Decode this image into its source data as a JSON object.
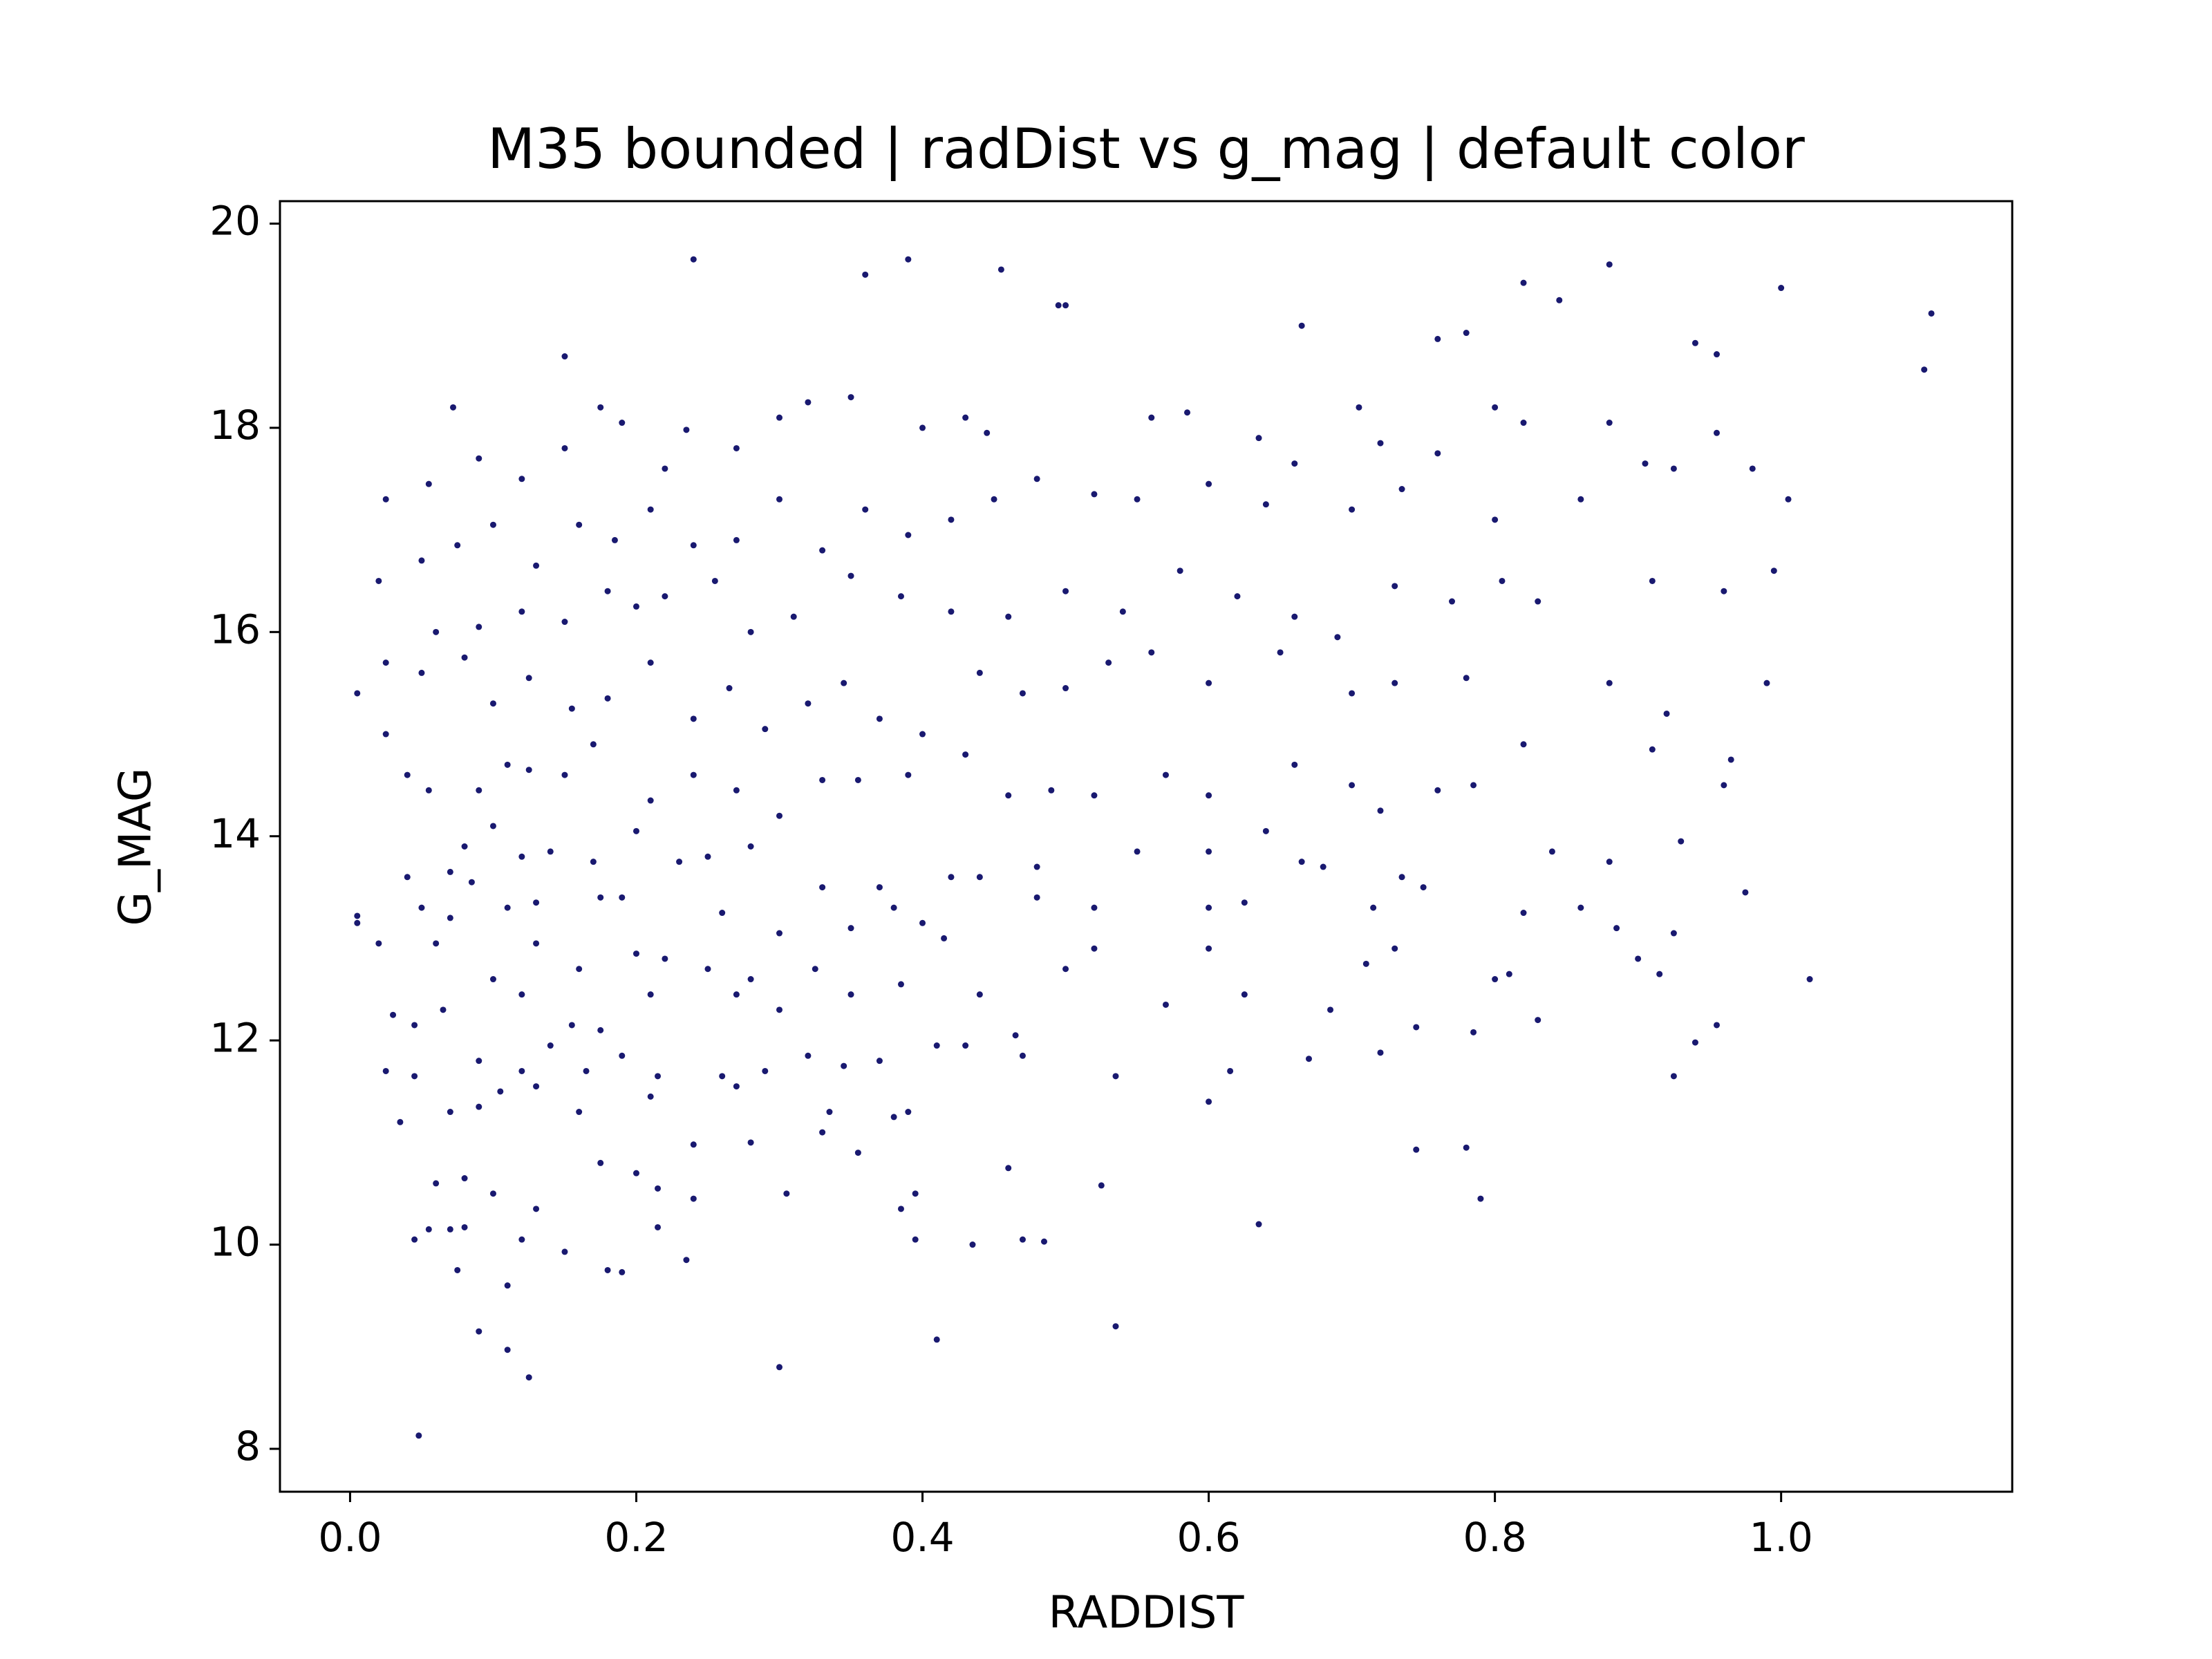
{
  "chart_data": {
    "type": "scatter",
    "title": "M35 bounded | radDist vs g_mag | default color",
    "x_label": "RADDIST",
    "y_label": "G_MAG",
    "color": "#191970",
    "xlim": [
      -0.049,
      1.1615
    ],
    "ylim": [
      7.58,
      20.22
    ],
    "xticks": [
      {
        "value": 0,
        "label": "0.0"
      },
      {
        "value": 0.2,
        "label": "0.2"
      },
      {
        "value": 0.4,
        "label": "0.4"
      },
      {
        "value": 0.6,
        "label": "0.6"
      },
      {
        "value": 0.8,
        "label": "0.8"
      },
      {
        "value": 1,
        "label": "1.0"
      }
    ],
    "yticks": [
      8,
      10,
      12,
      14,
      16,
      18,
      20
    ],
    "x": [
      0.24,
      0.36,
      0.39,
      0.455,
      0.495,
      0.5,
      0.665,
      0.76,
      0.78,
      0.82,
      0.845,
      0.88,
      0.94,
      0.955,
      1.0,
      1.1,
      1.105,
      0.15,
      0.048,
      0.125,
      0.3,
      0.41,
      0.535,
      0.09,
      0.11,
      0.11,
      0.075,
      0.18,
      0.19,
      0.235,
      0.15,
      0.045,
      0.055,
      0.07,
      0.08,
      0.12,
      0.215,
      0.395,
      0.435,
      0.47,
      0.485,
      0.635,
      0.79,
      0.525,
      0.46,
      0.78,
      0.745,
      0.06,
      0.08,
      0.1,
      0.13,
      0.175,
      0.2,
      0.215,
      0.24,
      0.305,
      0.385,
      0.395,
      0.035,
      0.07,
      0.09,
      0.105,
      0.13,
      0.16,
      0.21,
      0.24,
      0.27,
      0.28,
      0.33,
      0.335,
      0.355,
      0.38,
      0.39,
      0.025,
      0.045,
      0.09,
      0.12,
      0.14,
      0.165,
      0.19,
      0.215,
      0.26,
      0.29,
      0.32,
      0.345,
      0.37,
      0.41,
      0.43,
      0.47,
      0.535,
      0.6,
      0.615,
      0.67,
      0.72,
      0.745,
      0.785,
      0.925,
      0.94,
      0.955,
      0.03,
      0.045,
      0.065,
      0.1,
      0.12,
      0.155,
      0.175,
      0.21,
      0.25,
      0.27,
      0.3,
      0.325,
      0.35,
      0.385,
      0.44,
      0.465,
      0.5,
      0.52,
      0.57,
      0.6,
      0.625,
      0.685,
      0.71,
      0.73,
      0.8,
      0.81,
      0.83,
      0.9,
      0.915,
      1.02,
      0.06,
      0.13,
      0.16,
      0.2,
      0.28,
      0.22,
      0.02,
      0.005,
      0.005,
      0.05,
      0.07,
      0.085,
      0.11,
      0.13,
      0.175,
      0.19,
      0.26,
      0.3,
      0.35,
      0.38,
      0.4,
      0.415,
      0.48,
      0.52,
      0.6,
      0.625,
      0.715,
      0.75,
      0.82,
      0.86,
      0.885,
      0.925,
      0.975,
      0.04,
      0.07,
      0.08,
      0.1,
      0.12,
      0.14,
      0.17,
      0.2,
      0.23,
      0.25,
      0.28,
      0.33,
      0.37,
      0.42,
      0.44,
      0.48,
      0.55,
      0.6,
      0.64,
      0.665,
      0.68,
      0.735,
      0.84,
      0.88,
      0.93,
      0.04,
      0.055,
      0.09,
      0.11,
      0.125,
      0.15,
      0.17,
      0.21,
      0.24,
      0.27,
      0.3,
      0.33,
      0.355,
      0.39,
      0.43,
      0.46,
      0.49,
      0.52,
      0.57,
      0.6,
      0.66,
      0.7,
      0.72,
      0.76,
      0.785,
      0.82,
      0.91,
      0.96,
      0.965,
      0.005,
      0.025,
      0.05,
      0.08,
      0.1,
      0.125,
      0.155,
      0.18,
      0.21,
      0.24,
      0.265,
      0.29,
      0.32,
      0.345,
      0.37,
      0.4,
      0.44,
      0.47,
      0.5,
      0.53,
      0.56,
      0.6,
      0.65,
      0.7,
      0.73,
      0.78,
      0.88,
      0.92,
      0.99,
      0.025,
      0.06,
      0.09,
      0.12,
      0.15,
      0.18,
      0.2,
      0.22,
      0.255,
      0.28,
      0.31,
      0.35,
      0.385,
      0.42,
      0.46,
      0.5,
      0.54,
      0.58,
      0.62,
      0.66,
      0.69,
      0.73,
      0.77,
      0.805,
      0.83,
      0.91,
      0.96,
      0.995,
      0.02,
      0.05,
      0.075,
      0.1,
      0.13,
      0.16,
      0.185,
      0.21,
      0.24,
      0.27,
      0.3,
      0.33,
      0.36,
      0.39,
      0.42,
      0.45,
      0.48,
      0.52,
      0.55,
      0.6,
      0.64,
      0.66,
      0.7,
      0.735,
      0.76,
      0.8,
      0.86,
      0.905,
      0.925,
      0.98,
      1.005,
      0.025,
      0.055,
      0.09,
      0.12,
      0.15,
      0.175,
      0.19,
      0.22,
      0.235,
      0.27,
      0.3,
      0.32,
      0.35,
      0.4,
      0.43,
      0.445,
      0.56,
      0.585,
      0.635,
      0.705,
      0.72,
      0.8,
      0.82,
      0.88,
      0.955,
      0.072
    ],
    "values": [
      19.65,
      19.5,
      19.65,
      19.55,
      19.2,
      19.2,
      19.0,
      18.87,
      18.93,
      19.42,
      19.25,
      19.6,
      18.83,
      18.72,
      19.37,
      18.57,
      19.12,
      18.7,
      8.13,
      8.7,
      8.8,
      9.07,
      9.2,
      9.15,
      8.97,
      9.6,
      9.75,
      9.75,
      9.73,
      9.85,
      9.93,
      10.05,
      10.15,
      10.15,
      10.17,
      10.05,
      10.17,
      10.05,
      10.0,
      10.05,
      10.03,
      10.2,
      10.45,
      10.58,
      10.75,
      10.95,
      10.93,
      10.6,
      10.65,
      10.5,
      10.35,
      10.8,
      10.7,
      10.55,
      10.45,
      10.5,
      10.35,
      10.5,
      11.2,
      11.3,
      11.35,
      11.5,
      11.55,
      11.3,
      11.45,
      10.98,
      11.55,
      11.0,
      11.1,
      11.3,
      10.9,
      11.25,
      11.3,
      11.7,
      11.65,
      11.8,
      11.7,
      11.95,
      11.7,
      11.85,
      11.65,
      11.65,
      11.7,
      11.85,
      11.75,
      11.8,
      11.95,
      11.95,
      11.85,
      11.65,
      11.4,
      11.7,
      11.82,
      11.88,
      12.13,
      12.08,
      11.65,
      11.98,
      12.15,
      12.25,
      12.15,
      12.3,
      12.6,
      12.45,
      12.15,
      12.1,
      12.45,
      12.7,
      12.45,
      12.3,
      12.7,
      12.45,
      12.55,
      12.45,
      12.05,
      12.7,
      12.9,
      12.35,
      12.9,
      12.45,
      12.3,
      12.75,
      12.9,
      12.6,
      12.65,
      12.2,
      12.8,
      12.65,
      12.6,
      12.95,
      12.95,
      12.7,
      12.85,
      12.6,
      12.8,
      12.95,
      13.15,
      13.22,
      13.3,
      13.2,
      13.55,
      13.3,
      13.35,
      13.4,
      13.4,
      13.25,
      13.05,
      13.1,
      13.3,
      13.15,
      13.0,
      13.4,
      13.3,
      13.3,
      13.35,
      13.3,
      13.5,
      13.25,
      13.3,
      13.1,
      13.05,
      13.45,
      13.6,
      13.65,
      13.9,
      14.1,
      13.8,
      13.85,
      13.75,
      14.05,
      13.75,
      13.8,
      13.9,
      13.5,
      13.5,
      13.6,
      13.6,
      13.7,
      13.85,
      13.85,
      14.05,
      13.75,
      13.7,
      13.6,
      13.85,
      13.75,
      13.95,
      14.6,
      14.45,
      14.45,
      14.7,
      14.65,
      14.6,
      14.9,
      14.35,
      14.6,
      14.45,
      14.2,
      14.55,
      14.55,
      14.6,
      14.8,
      14.4,
      14.45,
      14.4,
      14.6,
      14.4,
      14.7,
      14.5,
      14.25,
      14.45,
      14.5,
      14.9,
      14.85,
      14.5,
      14.75,
      15.4,
      15.0,
      15.6,
      15.75,
      15.3,
      15.55,
      15.25,
      15.35,
      15.7,
      15.15,
      15.45,
      15.05,
      15.3,
      15.5,
      15.15,
      15.0,
      15.6,
      15.4,
      15.45,
      15.7,
      15.8,
      15.5,
      15.8,
      15.4,
      15.5,
      15.55,
      15.5,
      15.2,
      15.5,
      15.7,
      16.0,
      16.05,
      16.2,
      16.1,
      16.4,
      16.25,
      16.35,
      16.5,
      16.0,
      16.15,
      16.55,
      16.35,
      16.2,
      16.15,
      16.4,
      16.2,
      16.6,
      16.35,
      16.15,
      15.95,
      16.45,
      16.3,
      16.5,
      16.3,
      16.5,
      16.4,
      16.6,
      16.5,
      16.7,
      16.85,
      17.05,
      16.65,
      17.05,
      16.9,
      17.2,
      16.85,
      16.9,
      17.3,
      16.8,
      17.2,
      16.95,
      17.1,
      17.3,
      17.5,
      17.35,
      17.3,
      17.45,
      17.25,
      17.65,
      17.2,
      17.4,
      17.75,
      17.1,
      17.3,
      17.65,
      17.6,
      17.6,
      17.3,
      17.3,
      17.45,
      17.7,
      17.5,
      17.8,
      18.2,
      18.05,
      17.6,
      17.98,
      17.8,
      18.1,
      18.25,
      18.3,
      18.0,
      18.1,
      17.95,
      18.1,
      18.15,
      17.9,
      18.2,
      17.85,
      18.2,
      18.05,
      18.05,
      17.95,
      18.2
    ]
  }
}
